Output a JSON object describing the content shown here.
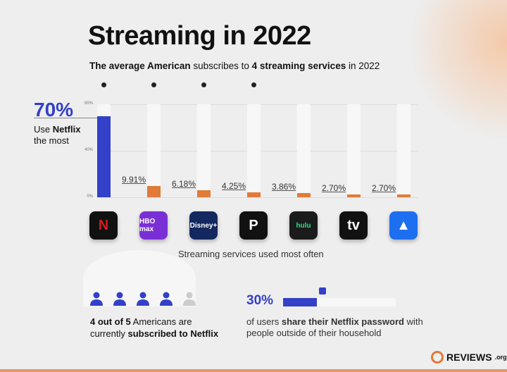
{
  "title": "Streaming in 2022",
  "subtitle": {
    "p1": "The average American",
    "p2": " subscribes to ",
    "p3": "4 streaming services",
    "p4": " in 2022"
  },
  "highlight": {
    "value": "70%",
    "p1": "Use ",
    "p2": "Netflix",
    "p3": "the most"
  },
  "chart_data": {
    "type": "bar",
    "title": "Streaming services used most often",
    "xlabel": "Streaming services used most often",
    "ylabel": "",
    "categories": [
      "Netflix",
      "HBO Max",
      "Disney+",
      "Peacock",
      "Hulu",
      "Apple TV",
      "Paramount+"
    ],
    "values": [
      70,
      9.91,
      6.18,
      4.25,
      3.86,
      2.7,
      2.7
    ],
    "value_labels": [
      "70%",
      "9.91%",
      "6.18%",
      "4.25%",
      "3.86%",
      "2.70%",
      "2.70%"
    ],
    "ylim": [
      0,
      80
    ],
    "yticks": [
      "0%",
      "40%",
      "80%"
    ],
    "colors": {
      "highlight": "#3340c8",
      "other": "#e07b39"
    },
    "average_services_dots": 4
  },
  "icons": [
    {
      "name": "netflix",
      "text": "N",
      "bg": "#111",
      "fg": "#d11b1b"
    },
    {
      "name": "hbo-max",
      "text": "HBO max",
      "bg": "#7a2fd6",
      "fg": "#fff"
    },
    {
      "name": "disney-plus",
      "text": "Disney+",
      "bg": "#13285e",
      "fg": "#fff"
    },
    {
      "name": "peacock",
      "text": "P",
      "bg": "#111",
      "fg": "#fff"
    },
    {
      "name": "hulu",
      "text": "hulu",
      "bg": "#1b1b1b",
      "fg": "#1ce783"
    },
    {
      "name": "apple-tv",
      "text": "tv",
      "bg": "#111",
      "fg": "#fff"
    },
    {
      "name": "paramount-plus",
      "text": "▲",
      "bg": "#1e6ef0",
      "fg": "#fff"
    }
  ],
  "stat1": {
    "subscribed": 4,
    "total": 5,
    "p1": "4 out of 5",
    "p2": " Americans are",
    "p3": "currently ",
    "p4": "subscribed to Netflix"
  },
  "stat2": {
    "value": "30%",
    "fraction": 0.3,
    "p1": "of users ",
    "p2": "share their Netflix password",
    "p3": " with",
    "p4": "people outside of their household"
  },
  "logo": {
    "main": "REVIEWS",
    "suffix": ".org"
  }
}
